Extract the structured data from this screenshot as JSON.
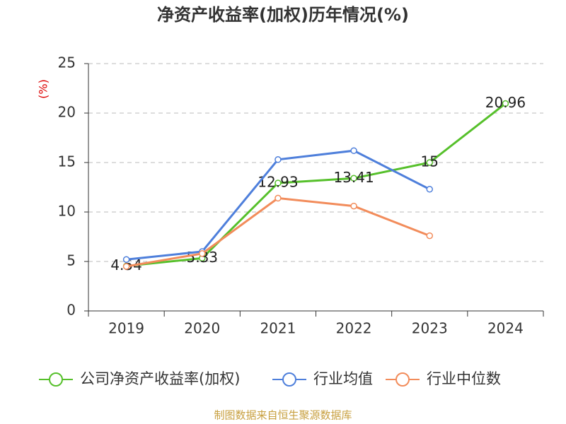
{
  "chart_data": {
    "type": "line",
    "title": "净资产收益率(加权)历年情况(%)",
    "y_label": "(%)",
    "source": "制图数据来自恒生聚源数据库",
    "categories": [
      "2019",
      "2020",
      "2021",
      "2022",
      "2023",
      "2024"
    ],
    "series": [
      {
        "name": "公司净资产收益率(加权)",
        "color": "#56c02b",
        "values": [
          4.54,
          5.33,
          12.93,
          13.41,
          15,
          20.96
        ],
        "data_labels": true
      },
      {
        "name": "行业均值",
        "color": "#4e7fdb",
        "values": [
          5.2,
          6.0,
          15.3,
          16.2,
          12.3,
          null
        ]
      },
      {
        "name": "行业中位数",
        "color": "#f28c5b",
        "values": [
          4.5,
          5.8,
          11.4,
          10.6,
          7.6,
          null
        ]
      }
    ],
    "ylim": [
      0,
      25
    ],
    "yticks": [
      0,
      5,
      10,
      15,
      20,
      25
    ],
    "grid": true
  }
}
